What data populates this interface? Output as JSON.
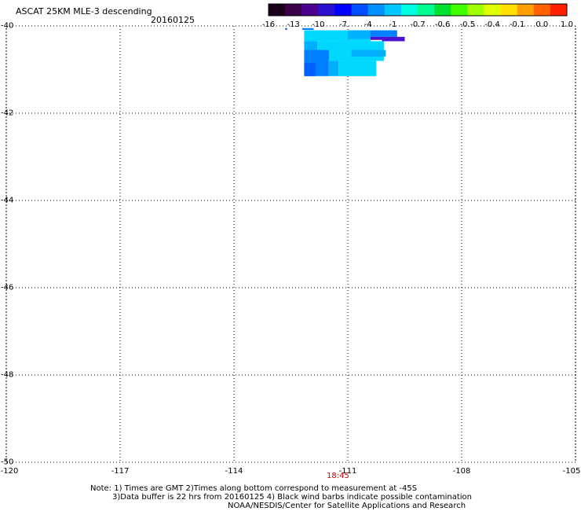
{
  "header": {
    "title": "ASCAT 25KM MLE-3 descending",
    "date": "20160125"
  },
  "colorbar": {
    "labels": [
      "-16",
      "-13",
      "-10",
      "-7",
      "-4",
      "-1",
      "-0.7",
      "-0.6",
      "-0.5",
      "-0.4",
      "-0.1",
      "0.0",
      "1.0"
    ],
    "colors": [
      "#1a001a",
      "#3a0048",
      "#4b0090",
      "#2a10d0",
      "#0000ff",
      "#0050ff",
      "#0090ff",
      "#00c8ff",
      "#00ffe0",
      "#00ff90",
      "#00e030",
      "#40ff00",
      "#a0ff00",
      "#e0ff00",
      "#ffe000",
      "#ffa000",
      "#ff6000",
      "#ff2000"
    ]
  },
  "axes": {
    "x_ticks": [
      "-120",
      "-117",
      "-114",
      "-111",
      "-108",
      "-105"
    ],
    "y_ticks": [
      "-40",
      "-42",
      "-44",
      "-46",
      "-48",
      "-50"
    ],
    "x_range": [
      -120,
      -105
    ],
    "y_range": [
      -40,
      -50
    ]
  },
  "pass_time": "18:45",
  "notes": {
    "line1": "Note: 1) Times are GMT 2)Times along bottom correspond to measurement at -45S",
    "line2": "3)Data buffer is 22 hrs from 20160125 4) Black wind barbs indicate possible contamination",
    "line3": "NOAA/NESDIS/Center for Satellite Applications and Research"
  },
  "swath": {
    "colors": {
      "cyan": "#00d8ff",
      "light_blue": "#00b0ff",
      "blue": "#0080ff",
      "mid_blue": "#0060ff",
      "violet": "#4b10d0"
    }
  }
}
